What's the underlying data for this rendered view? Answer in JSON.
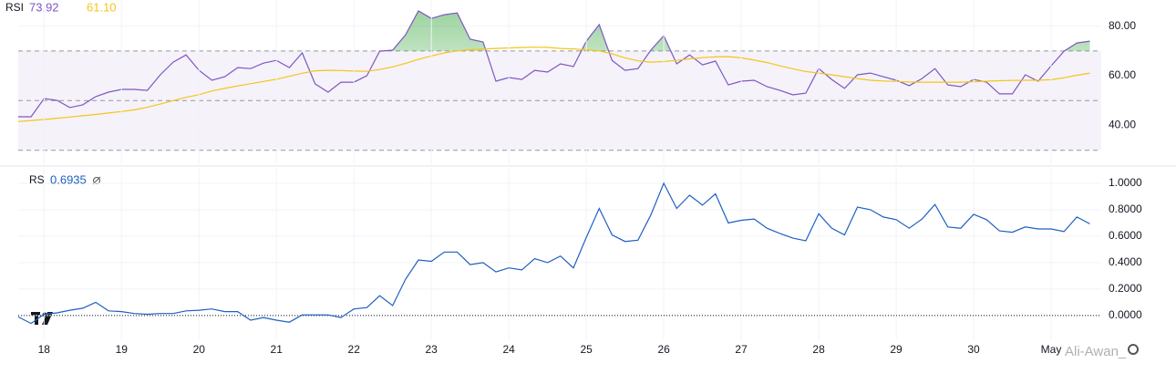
{
  "chart_data": [
    {
      "type": "line",
      "title": "RSI",
      "x": [
        17.667,
        17.833,
        18,
        18.167,
        18.333,
        18.5,
        18.667,
        18.833,
        19,
        19.167,
        19.333,
        19.5,
        19.667,
        19.833,
        20,
        20.167,
        20.333,
        20.5,
        20.667,
        20.833,
        21,
        21.167,
        21.333,
        21.5,
        21.667,
        21.833,
        22,
        22.167,
        22.333,
        22.5,
        22.667,
        22.833,
        23,
        23.167,
        23.333,
        23.5,
        23.667,
        23.833,
        24,
        24.167,
        24.333,
        24.5,
        24.667,
        24.833,
        25,
        25.167,
        25.333,
        25.5,
        25.667,
        25.833,
        26,
        26.167,
        26.333,
        26.5,
        26.667,
        26.833,
        27,
        27.167,
        27.333,
        27.5,
        27.667,
        27.833,
        28,
        28.167,
        28.333,
        28.5,
        28.667,
        28.833,
        29,
        29.167,
        29.333,
        29.5,
        29.667,
        29.833,
        30,
        30.167,
        30.333,
        30.5,
        30.667,
        30.833,
        31,
        31.167,
        31.333,
        31.5
      ],
      "series": [
        {
          "color": "#7e57c2",
          "value_label": "73.92",
          "values": [
            43.5,
            43.5,
            50.8,
            50.1,
            47.2,
            48.3,
            51.6,
            53.4,
            54.5,
            54.5,
            54.1,
            60.4,
            65.5,
            68.4,
            62.2,
            58.2,
            59.6,
            63.3,
            62.9,
            65.1,
            66.2,
            63.3,
            69.2,
            56.7,
            53.4,
            57.4,
            57.4,
            60,
            69.9,
            70.3,
            76.5,
            86.1,
            83.1,
            84.6,
            85.3,
            74.7,
            73.6,
            57.8,
            59.3,
            58.5,
            62.2,
            61.5,
            64.8,
            63.7,
            73.9,
            80.6,
            66.2,
            62.2,
            62.9,
            70.3,
            76.1,
            64.8,
            68.4,
            64.4,
            65.9,
            56.3,
            57.8,
            58.2,
            55.6,
            54.1,
            52.3,
            53,
            62.9,
            58.5,
            54.9,
            60.4,
            61.1,
            59.6,
            58.2,
            56,
            58.9,
            62.9,
            56.3,
            55.6,
            58.5,
            57.4,
            52.7,
            52.7,
            60.4,
            57.8,
            64,
            69.9,
            73.2,
            73.92
          ]
        },
        {
          "color": "#f5c518",
          "value_label": "61.10",
          "values": [
            41.6,
            42,
            42.4,
            42.9,
            43.4,
            43.9,
            44.4,
            45,
            45.6,
            46.3,
            47.3,
            48.6,
            50,
            51.3,
            52.4,
            53.9,
            54.9,
            55.9,
            56.8,
            57.7,
            58.6,
            59.8,
            61,
            62,
            62.2,
            62.1,
            61.9,
            61.8,
            62.5,
            63.6,
            65,
            66.6,
            68,
            69.2,
            70,
            70.5,
            70.8,
            71,
            71.2,
            71.4,
            71.5,
            71.4,
            71,
            70.8,
            70.5,
            70,
            68.8,
            67.2,
            66,
            65.5,
            65.7,
            66.2,
            66.8,
            67.3,
            67.6,
            67.7,
            67.2,
            66.3,
            65.3,
            64,
            62.8,
            61.7,
            61.1,
            60.4,
            59.6,
            58.9,
            58.2,
            57.9,
            57.7,
            57.5,
            57.4,
            57.4,
            57.4,
            57.4,
            57.6,
            57.8,
            58,
            58.1,
            58.2,
            58.2,
            58.4,
            59.2,
            60.2,
            61.1
          ]
        }
      ],
      "xlim": [
        17.667,
        31.647
      ],
      "ylim": [
        24.4,
        90.5
      ],
      "yticks": [
        {
          "value": 80,
          "label": "80.00"
        },
        {
          "value": 60,
          "label": "60.00"
        },
        {
          "value": 40,
          "label": "40.00"
        }
      ],
      "band": [
        30,
        70
      ],
      "hlines": [
        70,
        50,
        30
      ],
      "grid": true
    },
    {
      "type": "line",
      "title": "RS",
      "x": [
        17.667,
        17.833,
        18,
        18.167,
        18.333,
        18.5,
        18.667,
        18.833,
        19,
        19.167,
        19.333,
        19.5,
        19.667,
        19.833,
        20,
        20.167,
        20.333,
        20.5,
        20.667,
        20.833,
        21,
        21.167,
        21.333,
        21.5,
        21.667,
        21.833,
        22,
        22.167,
        22.333,
        22.5,
        22.667,
        22.833,
        23,
        23.167,
        23.333,
        23.5,
        23.667,
        23.833,
        24,
        24.167,
        24.333,
        24.5,
        24.667,
        24.833,
        25,
        25.167,
        25.333,
        25.5,
        25.667,
        25.833,
        26,
        26.167,
        26.333,
        26.5,
        26.667,
        26.833,
        27,
        27.167,
        27.333,
        27.5,
        27.667,
        27.833,
        28,
        28.167,
        28.333,
        28.5,
        28.667,
        28.833,
        29,
        29.167,
        29.333,
        29.5,
        29.667,
        29.833,
        30,
        30.167,
        30.333,
        30.5,
        30.667,
        30.833,
        31,
        31.167,
        31.333,
        31.5
      ],
      "series": [
        {
          "color": "#1f5fbf",
          "value_label": "0.6935",
          "values": [
            -0.01,
            -0.06,
            0.01,
            0.02,
            0.04,
            0.055,
            0.1,
            0.035,
            0.03,
            0.015,
            0.01,
            0.015,
            0.015,
            0.035,
            0.04,
            0.05,
            0.03,
            0.03,
            -0.035,
            -0.015,
            -0.035,
            -0.05,
            0.005,
            0.005,
            0.005,
            -0.015,
            0.05,
            0.06,
            0.15,
            0.075,
            0.275,
            0.42,
            0.41,
            0.48,
            0.48,
            0.385,
            0.4,
            0.33,
            0.36,
            0.345,
            0.43,
            0.4,
            0.45,
            0.36,
            0.59,
            0.81,
            0.61,
            0.56,
            0.57,
            0.76,
            1.0,
            0.81,
            0.91,
            0.835,
            0.92,
            0.7,
            0.72,
            0.73,
            0.66,
            0.62,
            0.585,
            0.565,
            0.77,
            0.66,
            0.61,
            0.82,
            0.8,
            0.745,
            0.725,
            0.66,
            0.73,
            0.84,
            0.67,
            0.66,
            0.765,
            0.725,
            0.64,
            0.63,
            0.67,
            0.655,
            0.655,
            0.635,
            0.745,
            0.6935
          ]
        }
      ],
      "xlim": [
        17.667,
        31.647
      ],
      "ylim": [
        -0.18,
        1.11
      ],
      "yticks": [
        {
          "value": 1,
          "label": "1.0000"
        },
        {
          "value": 0.8,
          "label": "0.8000"
        },
        {
          "value": 0.6,
          "label": "0.6000"
        },
        {
          "value": 0.4,
          "label": "0.4000"
        },
        {
          "value": 0.2,
          "label": "0.2000"
        },
        {
          "value": 0,
          "label": "0.0000"
        }
      ],
      "xticks": [
        18,
        19,
        20,
        21,
        22,
        23,
        24,
        25,
        26,
        27,
        28,
        29,
        30,
        {
          "value": 31,
          "label": "May"
        }
      ],
      "hlines": [
        0
      ],
      "grid": true
    }
  ],
  "watermark": "Ali-Awan_"
}
